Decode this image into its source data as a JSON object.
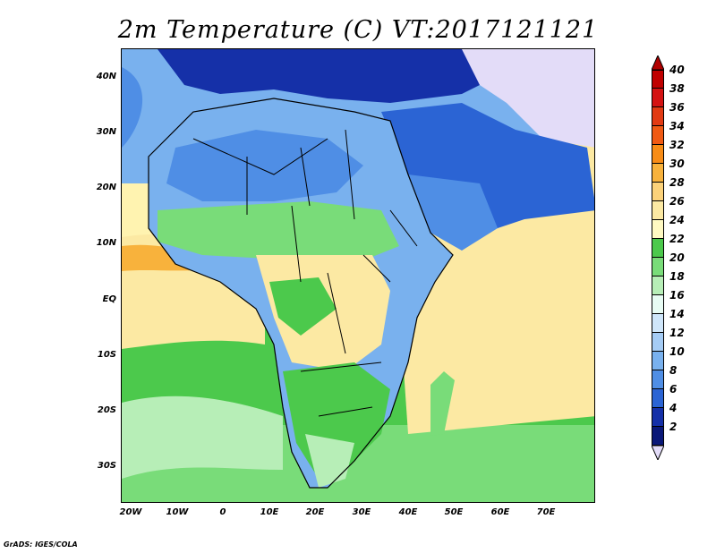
{
  "title": "2m Temperature (C) VT:2017121121",
  "lat_labels": [
    "40N",
    "30N",
    "20N",
    "10N",
    "EQ",
    "10S",
    "20S",
    "30S"
  ],
  "lon_labels": [
    "20W",
    "10W",
    "0",
    "10E",
    "20E",
    "30E",
    "40E",
    "50E",
    "60E",
    "70E"
  ],
  "colorbar": {
    "labels": [
      "40",
      "38",
      "36",
      "34",
      "32",
      "30",
      "28",
      "26",
      "24",
      "22",
      "20",
      "18",
      "16",
      "14",
      "12",
      "10",
      "8",
      "6",
      "4",
      "2"
    ],
    "colors": [
      "#c00000",
      "#d41313",
      "#e23a13",
      "#f05a14",
      "#f88c16",
      "#f8b23c",
      "#fcd27a",
      "#fce9a3",
      "#fff9c2",
      "#4cc94c",
      "#79dc79",
      "#b7eeb7",
      "#e8fcf4",
      "#cfe6fa",
      "#a5ccf5",
      "#79b1ee",
      "#4f8ee5",
      "#2b64d4",
      "#1530a8",
      "#0a1878"
    ],
    "top_arrow_color": "#b00000",
    "bottom_arrow_color": "#e3dcf8"
  },
  "footer": "GrADS: IGES/COLA"
}
